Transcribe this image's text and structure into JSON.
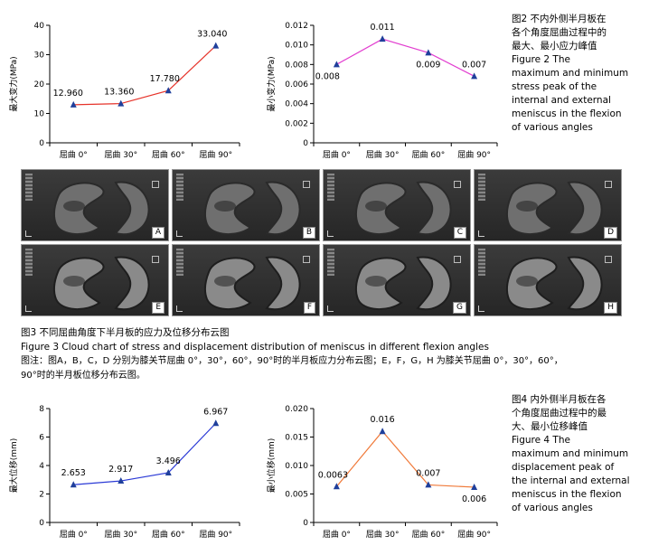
{
  "charts": [
    {
      "id": "fig2-left",
      "chart_data": {
        "type": "line",
        "categories": [
          "屈曲 0°",
          "屈曲 30°",
          "屈曲 60°",
          "屈曲 90°"
        ],
        "series": [
          {
            "values": [
              12.96,
              13.36,
              17.78,
              33.04
            ],
            "color": "#e6332a",
            "marker_color": "#1f3f9b"
          }
        ],
        "data_labels": [
          "12.960",
          "13.360",
          "17.780",
          "33.040"
        ],
        "ylabel": "最大变力(MPa)",
        "ylim": [
          0,
          40
        ],
        "yticks": [
          "0",
          "10",
          "20",
          "30",
          "40"
        ],
        "grid": false
      }
    },
    {
      "id": "fig2-right",
      "chart_data": {
        "type": "line",
        "categories": [
          "屈曲 0°",
          "屈曲 30°",
          "屈曲 60°",
          "屈曲 90°"
        ],
        "series": [
          {
            "values": [
              0.008,
              0.0106,
              0.0092,
              0.0068
            ],
            "color": "#e23fd0",
            "marker_color": "#1f3f9b"
          }
        ],
        "data_labels": [
          "0.008",
          "0.011",
          "0.009",
          "0.007"
        ],
        "ylabel": "最小变力(MPa)",
        "ylim": [
          0,
          0.012
        ],
        "yticks": [
          "0",
          "0.002",
          "0.004",
          "0.006",
          "0.008",
          "0.010",
          "0.012"
        ],
        "grid": false
      }
    },
    {
      "id": "fig4-left",
      "chart_data": {
        "type": "line",
        "categories": [
          "屈曲 0°",
          "屈曲 30°",
          "屈曲 60°",
          "屈曲 90°"
        ],
        "series": [
          {
            "values": [
              2.653,
              2.917,
              3.496,
              6.967
            ],
            "color": "#2b3ad6",
            "marker_color": "#1f3f9b"
          }
        ],
        "data_labels": [
          "2.653",
          "2.917",
          "3.496",
          "6.967"
        ],
        "ylabel": "最大位移(mm)",
        "ylim": [
          0,
          8
        ],
        "yticks": [
          "0",
          "2",
          "4",
          "6",
          "8"
        ],
        "grid": false
      }
    },
    {
      "id": "fig4-right",
      "chart_data": {
        "type": "line",
        "categories": [
          "屈曲 0°",
          "屈曲 30°",
          "屈曲 60°",
          "屈曲 90°"
        ],
        "series": [
          {
            "values": [
              0.0063,
              0.016,
              0.0066,
              0.0062
            ],
            "color": "#f07a3a",
            "marker_color": "#1f3f9b"
          }
        ],
        "data_labels": [
          "0.0063",
          "0.016",
          "0.007",
          "0.006"
        ],
        "ylabel": "最小位移(mm)",
        "ylim": [
          0,
          0.02
        ],
        "yticks": [
          "0",
          "0.005",
          "0.010",
          "0.015",
          "0.020"
        ],
        "grid": false
      }
    }
  ],
  "fig2_caption": [
    "图2   不内外侧半月板在",
    "各个角度屈曲过程中的",
    "最大、最小应力峰值",
    "Figure 2    The",
    "maximum and minimum",
    "stress peak of the",
    "internal and external",
    "meniscus in the flexion",
    "of various angles"
  ],
  "panel_labels": [
    "A",
    "B",
    "C",
    "D",
    "E",
    "F",
    "G",
    "H"
  ],
  "fig3_caption": {
    "line1": "图3   不同屈曲角度下半月板的应力及位移分布云图",
    "line2": "Figure 3   Cloud chart of stress and displacement distribution of meniscus in different flexion angles",
    "line3": "图注：图A，B，C，D 分别为膝关节屈曲 0°，30°，60°，90°时的半月板应力分布云图；E，F，G，H 为膝关节屈曲 0°，30°，60°，",
    "line4": "90°时的半月板位移分布云图。"
  },
  "fig4_caption": [
    "图4   内外侧半月板在各",
    "个角度屈曲过程中的最",
    "大、最小位移峰值",
    "Figure 4    The",
    "maximum and minimum",
    "displacement peak of",
    "the internal and external",
    "meniscus in the flexion",
    "of various angles"
  ]
}
